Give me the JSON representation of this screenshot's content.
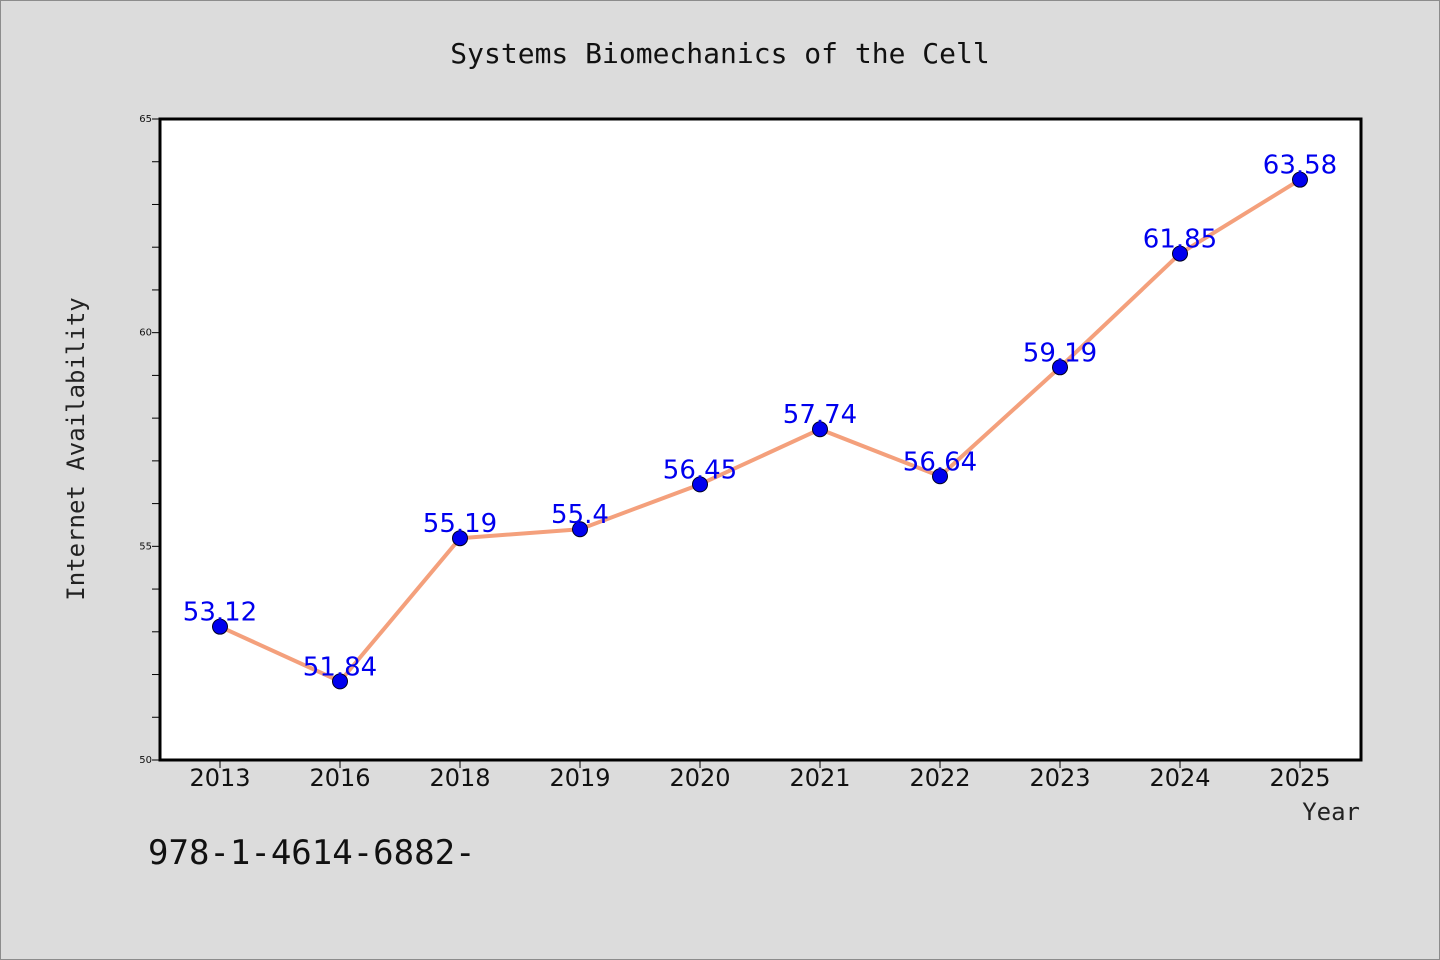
{
  "footer_text": "978-1-4614-6882-",
  "chart_data": {
    "type": "line",
    "title": "Systems Biomechanics of the Cell",
    "xlabel": "Year",
    "ylabel": "Internet Availability",
    "categories": [
      "2013",
      "2016",
      "2018",
      "2019",
      "2020",
      "2021",
      "2022",
      "2023",
      "2024",
      "2025"
    ],
    "series": [
      {
        "values": [
          53.12,
          51.84,
          55.19,
          55.4,
          56.45,
          57.74,
          56.64,
          59.19,
          61.85,
          63.58
        ],
        "labels": [
          "53.12",
          "51.84",
          "55.19",
          "55.4",
          "56.45",
          "57.74",
          "56.64",
          "59.19",
          "61.85",
          "63.58"
        ],
        "line_color": "#f4a07c",
        "marker_color": "#0000ee",
        "label_color": "#0000ee"
      }
    ],
    "ylim": [
      50,
      65
    ],
    "yticks": [
      "50",
      "55",
      "60",
      "65"
    ],
    "grid": false,
    "legend": "none"
  }
}
